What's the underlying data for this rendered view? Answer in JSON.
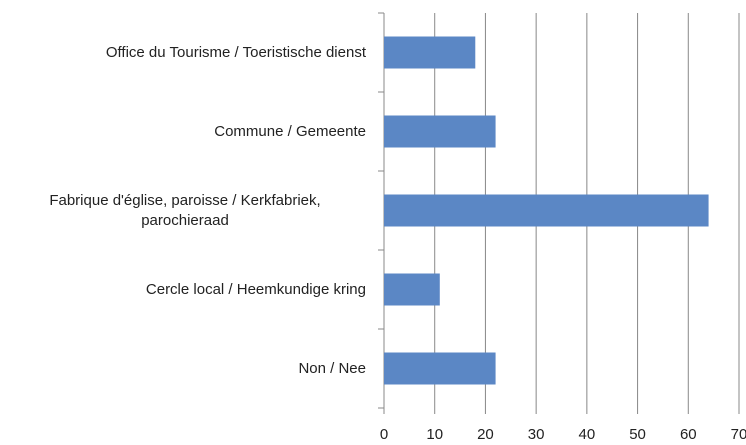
{
  "chart_data": {
    "type": "bar",
    "orientation": "horizontal",
    "categories": [
      "Office du Tourisme / Toeristische dienst",
      "Commune / Gemeente",
      "Fabrique d'église, paroisse / Kerkfabriek, parochieraad",
      "Cercle local / Heemkundige kring",
      "Non / Nee"
    ],
    "values": [
      18,
      22,
      64,
      11,
      22
    ],
    "color": "#5b87c5",
    "xlim": [
      0,
      70
    ],
    "xticks": [
      0,
      10,
      20,
      30,
      40,
      50,
      60,
      70
    ],
    "grid": true
  }
}
